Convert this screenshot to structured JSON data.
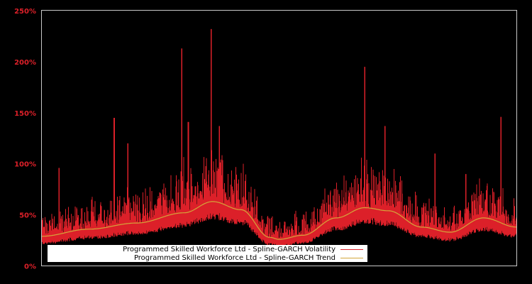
{
  "chart_data": {
    "type": "line",
    "title": "",
    "xlabel": "",
    "ylabel": "",
    "ylim": [
      0,
      250
    ],
    "yticks": [
      "0%",
      "50%",
      "100%",
      "150%",
      "200%",
      "250%"
    ],
    "grid": false,
    "legend_position": "lower left",
    "series": [
      {
        "name": "Programmed Skilled Workforce Ltd - Spline-GARCH Volatility",
        "color": "#dc2029",
        "peaks": [
          {
            "x_frac": 0.037,
            "value": 96
          },
          {
            "x_frac": 0.153,
            "value": 145
          },
          {
            "x_frac": 0.182,
            "value": 120
          },
          {
            "x_frac": 0.295,
            "value": 213
          },
          {
            "x_frac": 0.309,
            "value": 141
          },
          {
            "x_frac": 0.357,
            "value": 232
          },
          {
            "x_frac": 0.374,
            "value": 137
          },
          {
            "x_frac": 0.68,
            "value": 195
          },
          {
            "x_frac": 0.723,
            "value": 137
          },
          {
            "x_frac": 0.828,
            "value": 110
          },
          {
            "x_frac": 0.893,
            "value": 90
          },
          {
            "x_frac": 0.967,
            "value": 146
          }
        ]
      },
      {
        "name": "Programmed Skilled Workforce Ltd - Spline-GARCH Trend",
        "color": "#d4a53a",
        "x_frac": [
          0.0,
          0.1,
          0.2,
          0.3,
          0.36,
          0.42,
          0.48,
          0.5,
          0.55,
          0.62,
          0.68,
          0.73,
          0.8,
          0.86,
          0.93,
          1.0
        ],
        "values": [
          29,
          36,
          42,
          52,
          63,
          55,
          28,
          26,
          30,
          47,
          57,
          54,
          38,
          33,
          47,
          38
        ]
      }
    ]
  },
  "axes": {
    "y_ticks": [
      "0%",
      "50%",
      "100%",
      "150%",
      "200%",
      "250%"
    ]
  },
  "legend": {
    "volatility_label": "Programmed Skilled Workforce Ltd - Spline-GARCH Volatility",
    "trend_label": "Programmed Skilled Workforce Ltd - Spline-GARCH Trend",
    "volatility_color": "#dc2029",
    "trend_color": "#d4a53a"
  }
}
